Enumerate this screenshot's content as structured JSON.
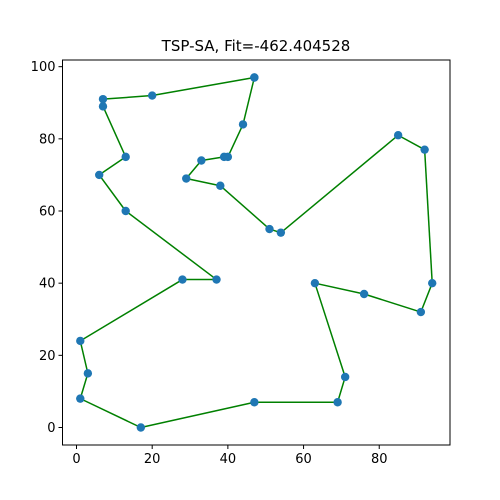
{
  "chart_data": {
    "type": "line",
    "title": "TSP-SA, Fit=-462.404528",
    "xlabel": "",
    "ylabel": "",
    "xlim": [
      -3.7,
      98.7
    ],
    "ylim": [
      -4.85,
      101.85
    ],
    "xticks": [
      0,
      20,
      40,
      60,
      80
    ],
    "yticks": [
      0,
      20,
      40,
      60,
      80,
      100
    ],
    "grid": false,
    "line_color": "#008000",
    "marker_color": "#1f77b4",
    "series": [
      {
        "name": "route",
        "points": [
          {
            "x": 47,
            "y": 97
          },
          {
            "x": 44,
            "y": 84
          },
          {
            "x": 40,
            "y": 75
          },
          {
            "x": 39,
            "y": 75
          },
          {
            "x": 33,
            "y": 74
          },
          {
            "x": 29,
            "y": 69
          },
          {
            "x": 38,
            "y": 67
          },
          {
            "x": 51,
            "y": 55
          },
          {
            "x": 54,
            "y": 54
          },
          {
            "x": 85,
            "y": 81
          },
          {
            "x": 92,
            "y": 77
          },
          {
            "x": 94,
            "y": 40
          },
          {
            "x": 91,
            "y": 32
          },
          {
            "x": 76,
            "y": 37
          },
          {
            "x": 63,
            "y": 40
          },
          {
            "x": 71,
            "y": 14
          },
          {
            "x": 69,
            "y": 7
          },
          {
            "x": 47,
            "y": 7
          },
          {
            "x": 17,
            "y": 0
          },
          {
            "x": 1,
            "y": 8
          },
          {
            "x": 3,
            "y": 15
          },
          {
            "x": 1,
            "y": 24
          },
          {
            "x": 28,
            "y": 41
          },
          {
            "x": 37,
            "y": 41
          },
          {
            "x": 13,
            "y": 60
          },
          {
            "x": 6,
            "y": 70
          },
          {
            "x": 13,
            "y": 75
          },
          {
            "x": 7,
            "y": 89
          },
          {
            "x": 7,
            "y": 91
          },
          {
            "x": 20,
            "y": 92
          },
          {
            "x": 47,
            "y": 97
          }
        ]
      }
    ]
  }
}
